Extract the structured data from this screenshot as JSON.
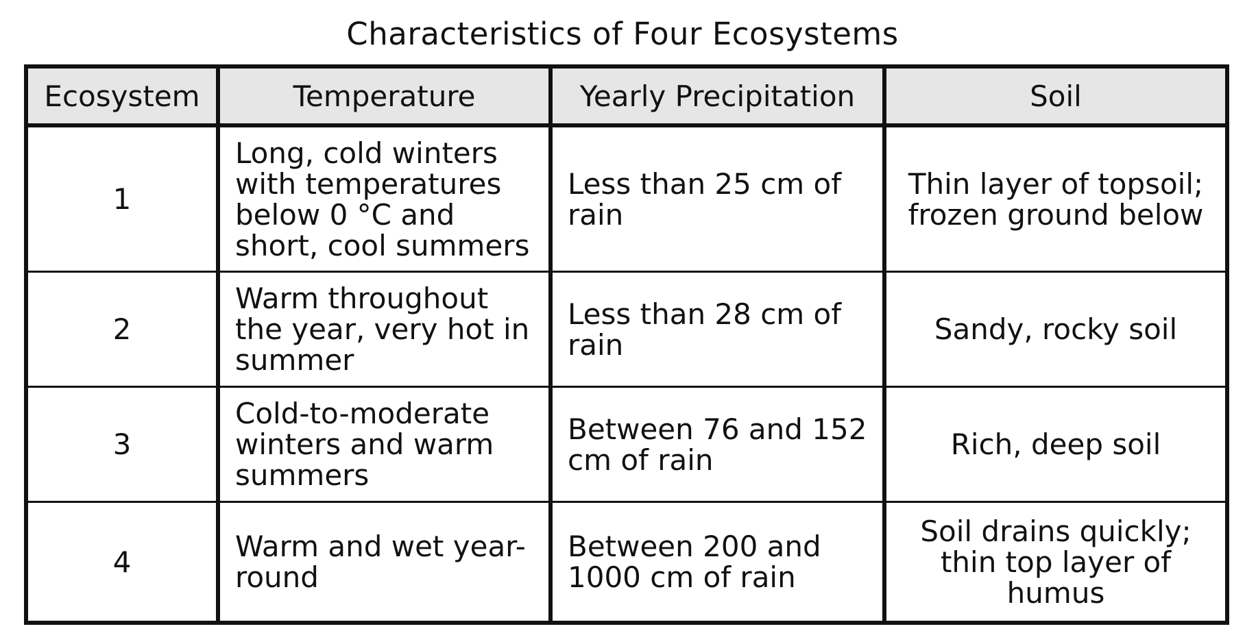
{
  "title": "Characteristics of Four Ecosystems",
  "table": {
    "headers": [
      "Ecosystem",
      "Temperature",
      "Yearly Precipitation",
      "Soil"
    ],
    "rows": [
      {
        "ecosystem": "1",
        "temperature": "Long, cold winters with temperatures below 0 °C and short, cool summers",
        "precipitation": "Less than 25 cm of rain",
        "soil": "Thin layer of topsoil; frozen ground below"
      },
      {
        "ecosystem": "2",
        "temperature": "Warm throughout the year, very hot in summer",
        "precipitation": "Less than 28 cm of rain",
        "soil": "Sandy, rocky soil"
      },
      {
        "ecosystem": "3",
        "temperature": "Cold-to-moderate winters and warm summers",
        "precipitation": "Between 76 and 152 cm of rain",
        "soil": "Rich, deep soil"
      },
      {
        "ecosystem": "4",
        "temperature": "Warm and wet year-round",
        "precipitation": "Between 200 and 1000 cm of rain",
        "soil": "Soil drains quickly; thin top layer of humus"
      }
    ]
  },
  "colors": {
    "header_background": "#e6e6e6",
    "border": "#111111",
    "text": "#111111"
  }
}
